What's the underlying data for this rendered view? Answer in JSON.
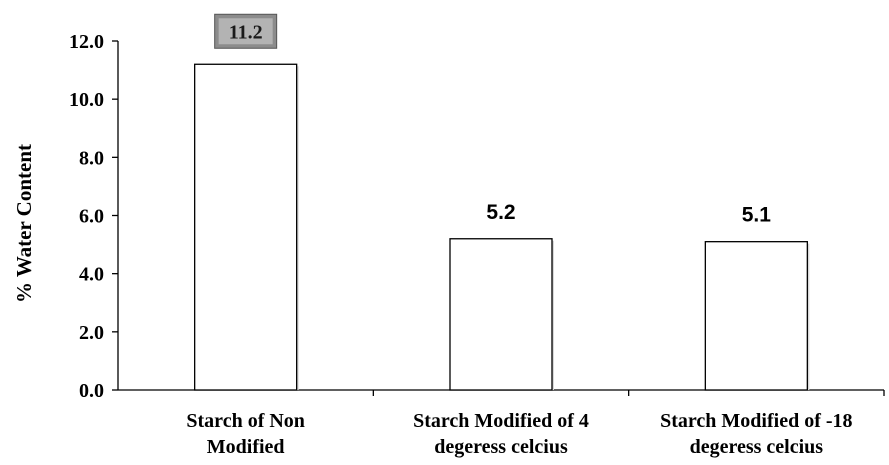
{
  "chart_data": {
    "type": "bar",
    "title": "",
    "xlabel": "",
    "ylabel": "% Water Content",
    "ylim": [
      0,
      12
    ],
    "yticks": [
      "0.0",
      "2.0",
      "4.0",
      "6.0",
      "8.0",
      "10.0",
      "12.0"
    ],
    "categories": [
      [
        "Starch of Non",
        "Modified"
      ],
      [
        "Starch Modified of 4",
        "degeress celcius"
      ],
      [
        "Starch Modified of -18",
        "degeress celcius"
      ]
    ],
    "values": [
      11.2,
      5.2,
      5.1
    ],
    "data_labels": [
      "11.2",
      "5.2",
      "5.1"
    ],
    "highlighted_label_index": 0,
    "grid": false,
    "legend": "none",
    "colors": {
      "bar_fill": "#ffffff",
      "bar_stroke": "#000000",
      "highlight_fill": "#8c8c8c",
      "highlight_inner": "#b3b3b3",
      "axis": "#000000"
    }
  }
}
